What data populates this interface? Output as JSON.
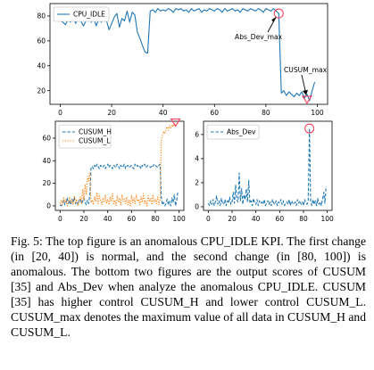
{
  "chart_data": [
    {
      "type": "line",
      "legend": "top-left",
      "xlim": [
        -4,
        104
      ],
      "ylim": [
        9,
        90
      ],
      "xticks": [
        0,
        20,
        40,
        60,
        80,
        100
      ],
      "yticks": [
        20,
        40,
        60,
        80
      ],
      "series": [
        {
          "name": "CPU_IDLE",
          "color": "#1f77b4",
          "style": "solid",
          "x": [
            0,
            1,
            2,
            3,
            4,
            5,
            6,
            7,
            8,
            9,
            10,
            11,
            12,
            13,
            14,
            15,
            16,
            17,
            18,
            19,
            20,
            21,
            22,
            23,
            24,
            25,
            26,
            27,
            28,
            29,
            30,
            31,
            32,
            33,
            34,
            35,
            36,
            37,
            38,
            39,
            40,
            41,
            42,
            43,
            44,
            45,
            46,
            47,
            48,
            49,
            50,
            51,
            52,
            53,
            54,
            55,
            56,
            57,
            58,
            59,
            60,
            61,
            62,
            63,
            64,
            65,
            66,
            67,
            68,
            69,
            70,
            71,
            72,
            73,
            74,
            75,
            76,
            77,
            78,
            79,
            80,
            81,
            82,
            83,
            84,
            85,
            86,
            87,
            88,
            89,
            90,
            91,
            92,
            93,
            94,
            95,
            96,
            97,
            98,
            99
          ],
          "y": [
            76,
            75,
            73,
            77,
            75,
            79,
            74,
            80,
            76,
            72,
            76,
            80,
            75,
            78,
            72,
            78,
            75,
            81,
            76,
            69,
            74,
            79,
            82,
            71,
            78,
            76,
            84,
            75,
            83,
            81,
            67,
            62,
            56,
            51,
            50,
            84,
            85,
            83,
            86,
            84,
            85,
            84,
            86,
            85,
            83,
            86,
            85,
            86,
            84,
            85,
            83,
            86,
            84,
            85,
            86,
            83,
            85,
            84,
            86,
            85,
            84,
            86,
            85,
            83,
            86,
            84,
            85,
            86,
            84,
            85,
            83,
            86,
            85,
            84,
            86,
            85,
            84,
            86,
            85,
            83,
            86,
            85,
            84,
            86,
            84,
            82,
            18,
            20,
            16,
            19,
            17,
            15,
            18,
            16,
            19,
            14,
            17,
            12,
            20,
            27
          ]
        }
      ],
      "annotations": [
        {
          "text": "Abs_Dev_max",
          "x": 85,
          "y": 82
        },
        {
          "text": "CUSUM_max",
          "x": 96,
          "y": 12
        }
      ]
    },
    {
      "type": "line",
      "legend": "top-left",
      "xlim": [
        -4,
        104
      ],
      "ylim": [
        -4,
        75
      ],
      "xticks": [
        0,
        20,
        40,
        60,
        80,
        100
      ],
      "yticks": [
        0,
        20,
        40,
        60
      ],
      "series": [
        {
          "name": "CUSUM_H",
          "color": "#1f77b4",
          "style": "dashed",
          "x": [
            0,
            1,
            2,
            3,
            4,
            5,
            6,
            7,
            8,
            9,
            10,
            11,
            12,
            13,
            14,
            15,
            16,
            17,
            18,
            19,
            20,
            21,
            22,
            23,
            24,
            25,
            26,
            27,
            28,
            29,
            30,
            31,
            32,
            33,
            34,
            35,
            36,
            37,
            38,
            39,
            40,
            41,
            42,
            43,
            44,
            45,
            46,
            47,
            48,
            49,
            50,
            51,
            52,
            53,
            54,
            55,
            56,
            57,
            58,
            59,
            60,
            61,
            62,
            63,
            64,
            65,
            66,
            67,
            68,
            69,
            70,
            71,
            72,
            73,
            74,
            75,
            76,
            77,
            78,
            79,
            80,
            81,
            82,
            83,
            84,
            85,
            86,
            87,
            88,
            89,
            90,
            91,
            92,
            93,
            94,
            95,
            96,
            97,
            98,
            99
          ],
          "y": [
            1,
            0,
            2,
            5,
            1,
            3,
            7,
            2,
            5,
            1,
            6,
            3,
            8,
            2,
            4,
            1,
            5,
            6,
            2,
            4,
            7,
            3,
            1,
            5,
            2,
            10,
            34,
            35,
            33,
            36,
            34,
            37,
            35,
            33,
            36,
            35,
            34,
            36,
            33,
            35,
            37,
            34,
            36,
            35,
            33,
            36,
            35,
            34,
            37,
            35,
            33,
            36,
            34,
            35,
            37,
            33,
            35,
            36,
            34,
            35,
            36,
            34,
            33,
            37,
            35,
            36,
            34,
            35,
            33,
            36,
            35,
            37,
            34,
            35,
            36,
            35,
            34,
            36,
            35,
            37,
            36,
            35,
            34,
            36,
            37,
            8,
            1,
            3,
            0,
            2,
            6,
            1,
            4,
            0,
            7,
            3,
            10,
            0,
            5,
            13
          ]
        },
        {
          "name": "CUSUM_L",
          "color": "#ff7f0e",
          "style": "dotted",
          "x": [
            0,
            1,
            2,
            3,
            4,
            5,
            6,
            7,
            8,
            9,
            10,
            11,
            12,
            13,
            14,
            15,
            16,
            17,
            18,
            19,
            20,
            21,
            22,
            23,
            24,
            25,
            26,
            27,
            28,
            29,
            30,
            31,
            32,
            33,
            34,
            35,
            36,
            37,
            38,
            39,
            40,
            41,
            42,
            43,
            44,
            45,
            46,
            47,
            48,
            49,
            50,
            51,
            52,
            53,
            54,
            55,
            56,
            57,
            58,
            59,
            60,
            61,
            62,
            63,
            64,
            65,
            66,
            67,
            68,
            69,
            70,
            71,
            72,
            73,
            74,
            75,
            76,
            77,
            78,
            79,
            80,
            81,
            82,
            83,
            84,
            85,
            86,
            87,
            88,
            89,
            90,
            91,
            92,
            93,
            94,
            95,
            96,
            97,
            98,
            99
          ],
          "y": [
            2,
            5,
            1,
            7,
            3,
            6,
            0,
            4,
            8,
            2,
            5,
            1,
            9,
            3,
            6,
            0,
            4,
            8,
            2,
            15,
            5,
            19,
            10,
            26,
            22,
            30,
            3,
            5,
            1,
            8,
            4,
            12,
            2,
            9,
            5,
            1,
            7,
            3,
            10,
            2,
            6,
            1,
            8,
            4,
            11,
            2,
            5,
            0,
            9,
            3,
            7,
            1,
            10,
            4,
            6,
            2,
            8,
            1,
            5,
            0,
            9,
            3,
            7,
            2,
            10,
            4,
            6,
            1,
            8,
            3,
            11,
            2,
            5,
            0,
            9,
            4,
            7,
            1,
            10,
            3,
            6,
            2,
            8,
            1,
            5,
            58,
            62,
            66,
            64,
            68,
            70,
            67,
            71,
            69,
            72,
            70,
            73,
            71,
            72,
            74
          ]
        }
      ],
      "annotations": [
        {
          "text": "",
          "x": 97,
          "y": 73
        }
      ]
    },
    {
      "type": "line",
      "legend": "top-left",
      "xlim": [
        -4,
        104
      ],
      "ylim": [
        -0.3,
        7.1
      ],
      "xticks": [
        0,
        20,
        40,
        60,
        80,
        100
      ],
      "yticks": [
        0,
        2,
        4,
        6
      ],
      "series": [
        {
          "name": "Abs_Dev",
          "color": "#1f77b4",
          "style": "dashed",
          "x": [
            0,
            1,
            2,
            3,
            4,
            5,
            6,
            7,
            8,
            9,
            10,
            11,
            12,
            13,
            14,
            15,
            16,
            17,
            18,
            19,
            20,
            21,
            22,
            23,
            24,
            25,
            26,
            27,
            28,
            29,
            30,
            31,
            32,
            33,
            34,
            35,
            36,
            37,
            38,
            39,
            40,
            41,
            42,
            43,
            44,
            45,
            46,
            47,
            48,
            49,
            50,
            51,
            52,
            53,
            54,
            55,
            56,
            57,
            58,
            59,
            60,
            61,
            62,
            63,
            64,
            65,
            66,
            67,
            68,
            69,
            70,
            71,
            72,
            73,
            74,
            75,
            76,
            77,
            78,
            79,
            80,
            81,
            82,
            83,
            84,
            85,
            86,
            87,
            88,
            89,
            90,
            91,
            92,
            93,
            94,
            95,
            96,
            97,
            98,
            99
          ],
          "y": [
            0.3,
            0.1,
            0.5,
            0.2,
            0.6,
            0.1,
            0.4,
            0.9,
            0.2,
            0.5,
            0.1,
            0.7,
            0.3,
            0.2,
            0.6,
            0.1,
            0.5,
            0.3,
            0.8,
            0.2,
            0.4,
            1.2,
            0.3,
            1.8,
            0.6,
            0.4,
            2.8,
            0.5,
            1.5,
            0.2,
            1.0,
            0.6,
            1.5,
            0.4,
            2.2,
            0.3,
            0.5,
            0.1,
            0.7,
            0.3,
            0.2,
            0.6,
            0.1,
            0.5,
            0.3,
            0.4,
            0.2,
            0.6,
            0.1,
            0.3,
            0.5,
            0.2,
            0.4,
            0.1,
            0.6,
            0.3,
            0.2,
            0.5,
            0.1,
            0.4,
            0.3,
            0.6,
            0.2,
            0.5,
            0.1,
            0.3,
            0.4,
            0.2,
            0.6,
            0.1,
            0.5,
            0.3,
            0.2,
            0.4,
            0.1,
            0.6,
            0.3,
            0.5,
            0.2,
            0.4,
            0.1,
            0.6,
            0.3,
            0.2,
            0.5,
            6.5,
            0.4,
            0.1,
            0.6,
            0.2,
            0.5,
            0.1,
            0.7,
            0.2,
            0.4,
            0.1,
            0.6,
            1.2,
            0.3,
            1.7
          ]
        }
      ],
      "annotations": [
        {
          "text": "",
          "x": 85,
          "y": 6.5
        }
      ]
    }
  ],
  "caption": "Fig. 5: The top figure is an anomalous CPU_IDLE KPI. The first change (in [20, 40]) is normal, and the second change (in [80, 100]) is anomalous. The bottom two figures are the output scores of CUSUM [35] and Abs_Dev when analyze the anomalous CPU_IDLE. CUSUM [35] has higher control CUSUM_H and lower control CUSUM_L. CUSUM_max denotes the maximum value of all data in CUSUM_H and CUSUM_L."
}
